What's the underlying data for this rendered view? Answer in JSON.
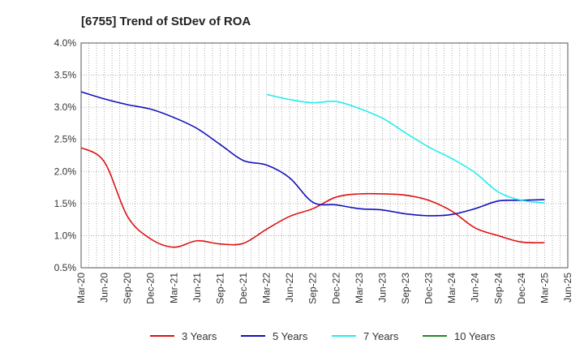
{
  "chart_data": {
    "type": "line",
    "title": "[6755]  Trend of StDev of ROA",
    "xlabel": "",
    "ylabel": "",
    "ylim": [
      0.5,
      4.0
    ],
    "y_ticks": [
      "0.5%",
      "1.0%",
      "1.5%",
      "2.0%",
      "2.5%",
      "3.0%",
      "3.5%",
      "4.0%"
    ],
    "y_tick_values": [
      0.5,
      1.0,
      1.5,
      2.0,
      2.5,
      3.0,
      3.5,
      4.0
    ],
    "x_ticks": [
      "Mar-20",
      "Jun-20",
      "Sep-20",
      "Dec-20",
      "Mar-21",
      "Jun-21",
      "Sep-21",
      "Dec-21",
      "Mar-22",
      "Jun-22",
      "Sep-22",
      "Dec-22",
      "Mar-23",
      "Jun-23",
      "Sep-23",
      "Dec-23",
      "Mar-24",
      "Jun-24",
      "Sep-24",
      "Dec-24",
      "Mar-25",
      "Jun-25"
    ],
    "grid": true,
    "legend_position": "bottom",
    "series": [
      {
        "name": "3 Years",
        "color": "#dd1111",
        "x": [
          "Mar-20",
          "Jun-20",
          "Sep-20",
          "Dec-20",
          "Mar-21",
          "Jun-21",
          "Sep-21",
          "Dec-21",
          "Mar-22",
          "Jun-22",
          "Sep-22",
          "Dec-22",
          "Mar-23",
          "Jun-23",
          "Sep-23",
          "Dec-23",
          "Mar-24",
          "Jun-24",
          "Sep-24",
          "Dec-24",
          "Mar-25"
        ],
        "values": [
          2.37,
          2.15,
          1.3,
          0.95,
          0.82,
          0.92,
          0.87,
          0.88,
          1.1,
          1.3,
          1.42,
          1.6,
          1.65,
          1.65,
          1.63,
          1.55,
          1.38,
          1.12,
          1.0,
          0.9,
          0.89
        ]
      },
      {
        "name": "5 Years",
        "color": "#1111bb",
        "x": [
          "Mar-20",
          "Jun-20",
          "Sep-20",
          "Dec-20",
          "Mar-21",
          "Jun-21",
          "Sep-21",
          "Dec-21",
          "Mar-22",
          "Jun-22",
          "Sep-22",
          "Dec-22",
          "Mar-23",
          "Jun-23",
          "Sep-23",
          "Dec-23",
          "Mar-24",
          "Jun-24",
          "Sep-24",
          "Dec-24",
          "Mar-25"
        ],
        "values": [
          3.24,
          3.13,
          3.04,
          2.97,
          2.84,
          2.67,
          2.42,
          2.17,
          2.1,
          1.9,
          1.52,
          1.48,
          1.42,
          1.4,
          1.34,
          1.31,
          1.33,
          1.42,
          1.54,
          1.55,
          1.56
        ]
      },
      {
        "name": "7 Years",
        "color": "#22eeee",
        "x": [
          "Mar-22",
          "Jun-22",
          "Sep-22",
          "Dec-22",
          "Mar-23",
          "Jun-23",
          "Sep-23",
          "Dec-23",
          "Mar-24",
          "Jun-24",
          "Sep-24",
          "Dec-24",
          "Mar-25"
        ],
        "values": [
          3.2,
          3.12,
          3.07,
          3.09,
          2.98,
          2.83,
          2.6,
          2.38,
          2.2,
          1.98,
          1.68,
          1.55,
          1.51
        ]
      },
      {
        "name": "10 Years",
        "color": "#228822",
        "x": [],
        "values": []
      }
    ]
  }
}
